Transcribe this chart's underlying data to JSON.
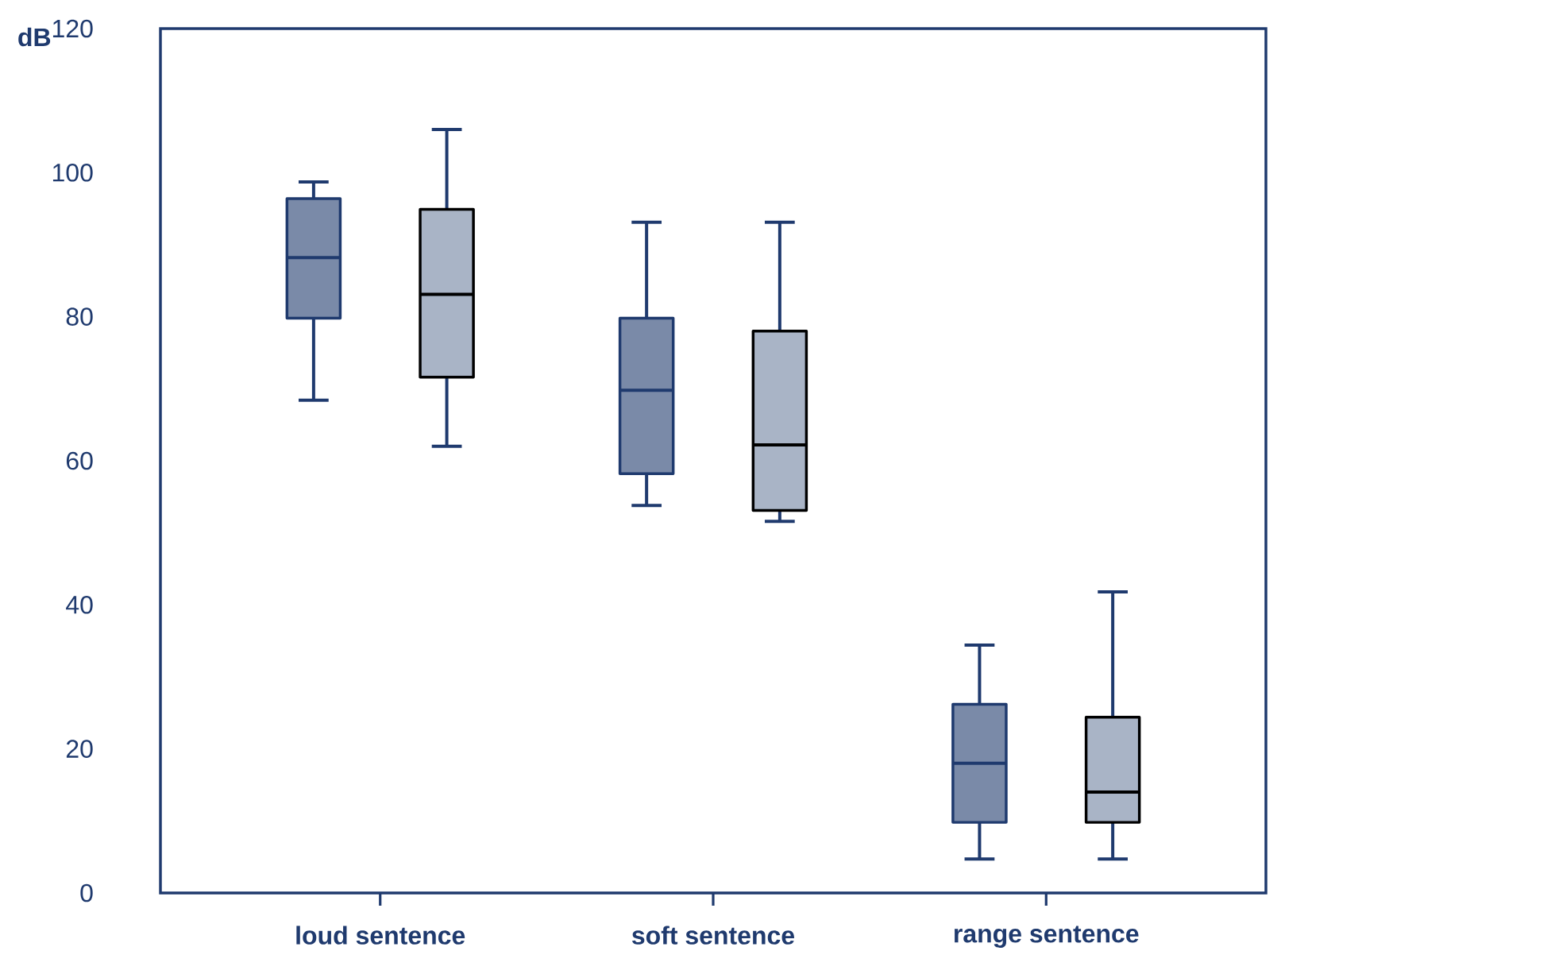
{
  "chart_data": {
    "type": "box",
    "ylabel": "dB",
    "categories": [
      "loud sentence",
      "soft sentence",
      "range sentence"
    ],
    "ylim": [
      0,
      120
    ],
    "yticks": [
      0,
      20,
      40,
      60,
      80,
      100,
      120
    ],
    "grid": false,
    "series": [
      {
        "color": "#7a8aa8",
        "boxes": [
          {
            "low": 68.4,
            "q1": 79.8,
            "median": 88.2,
            "q3": 96.4,
            "high": 98.7
          },
          {
            "low": 53.8,
            "q1": 58.2,
            "median": 69.8,
            "q3": 79.8,
            "high": 93.1
          },
          {
            "low": 4.7,
            "q1": 9.8,
            "median": 18,
            "q3": 26.2,
            "high": 34.4
          }
        ]
      },
      {
        "color": "#a9b4c6",
        "boxes": [
          {
            "low": 62,
            "q1": 71.6,
            "median": 83.1,
            "q3": 94.9,
            "high": 106
          },
          {
            "low": 51.6,
            "q1": 53.1,
            "median": 62.2,
            "q3": 78,
            "high": 93.1
          },
          {
            "low": 4.7,
            "q1": 9.8,
            "median": 14,
            "q3": 24.4,
            "high": 41.8
          }
        ]
      }
    ]
  }
}
